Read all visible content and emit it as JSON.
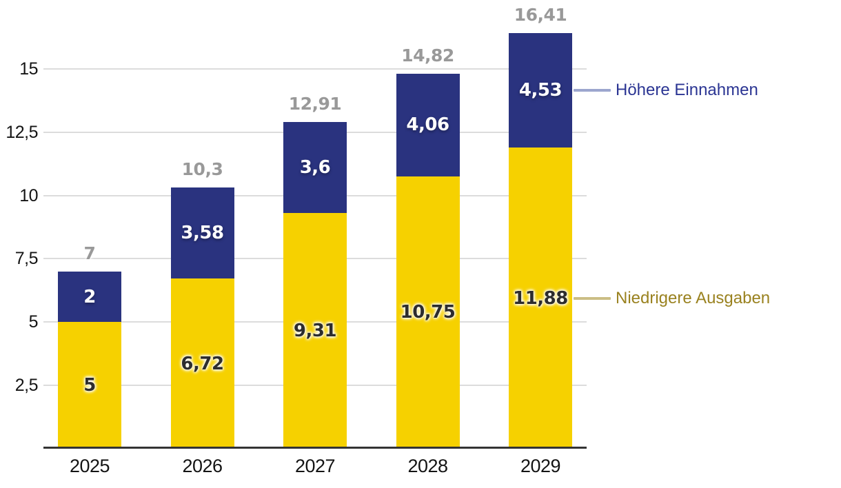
{
  "chart_data": {
    "type": "bar",
    "stacked": true,
    "title": "",
    "xlabel": "",
    "ylabel": "",
    "categories": [
      "2025",
      "2026",
      "2027",
      "2028",
      "2029"
    ],
    "series": [
      {
        "name": "Niedrigere Ausgaben",
        "color": "#F6D100",
        "label_color": "#2d2d2d",
        "values": [
          5,
          6.72,
          9.31,
          10.75,
          11.88
        ],
        "labels": [
          "5",
          "6,72",
          "9,31",
          "10,75",
          "11,88"
        ]
      },
      {
        "name": "Höhere Einnahmen",
        "color": "#2A337F",
        "label_color": "#ffffff",
        "values": [
          2,
          3.58,
          3.6,
          4.06,
          4.53
        ],
        "labels": [
          "2",
          "3,58",
          "3,6",
          "4,06",
          "4,53"
        ]
      }
    ],
    "totals": {
      "values": [
        7,
        10.3,
        12.91,
        14.82,
        16.41
      ],
      "labels": [
        "7",
        "10,3",
        "12,91",
        "14,82",
        "16,41"
      ],
      "color": "#999999"
    },
    "y_axis": {
      "min": 0,
      "max": 17,
      "grid": true,
      "ticks": [
        2.5,
        5,
        7.5,
        10,
        12.5,
        15
      ],
      "tick_labels": [
        "2,5",
        "5",
        "7,5",
        "10",
        "12,5",
        "15"
      ]
    },
    "legend": {
      "position": "right",
      "items": [
        {
          "label": "Höhere Einnahmen",
          "series_index": 1,
          "text_color": "#2B3593",
          "line_color": "#9CA6CE"
        },
        {
          "label": "Niedrigere Ausgaben",
          "series_index": 0,
          "text_color": "#9A8220",
          "line_color": "#CBBE85"
        }
      ]
    }
  }
}
